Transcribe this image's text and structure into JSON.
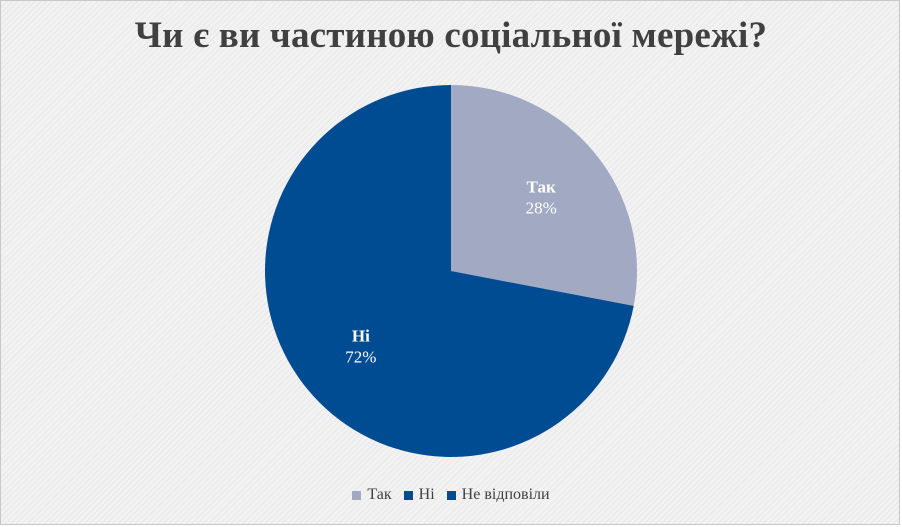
{
  "chart_data": {
    "type": "pie",
    "title": "Чи є ви частиною соціальної мережі?",
    "categories": [
      "Так",
      "Ні",
      "Не відповіли"
    ],
    "values": [
      28,
      72,
      0
    ],
    "value_labels": [
      "28%",
      "72%",
      ""
    ],
    "colors": [
      "#a2aac3",
      "#004c93",
      "#004c93"
    ],
    "legend_position": "bottom",
    "start_angle_deg": 0,
    "direction": "clockwise"
  }
}
